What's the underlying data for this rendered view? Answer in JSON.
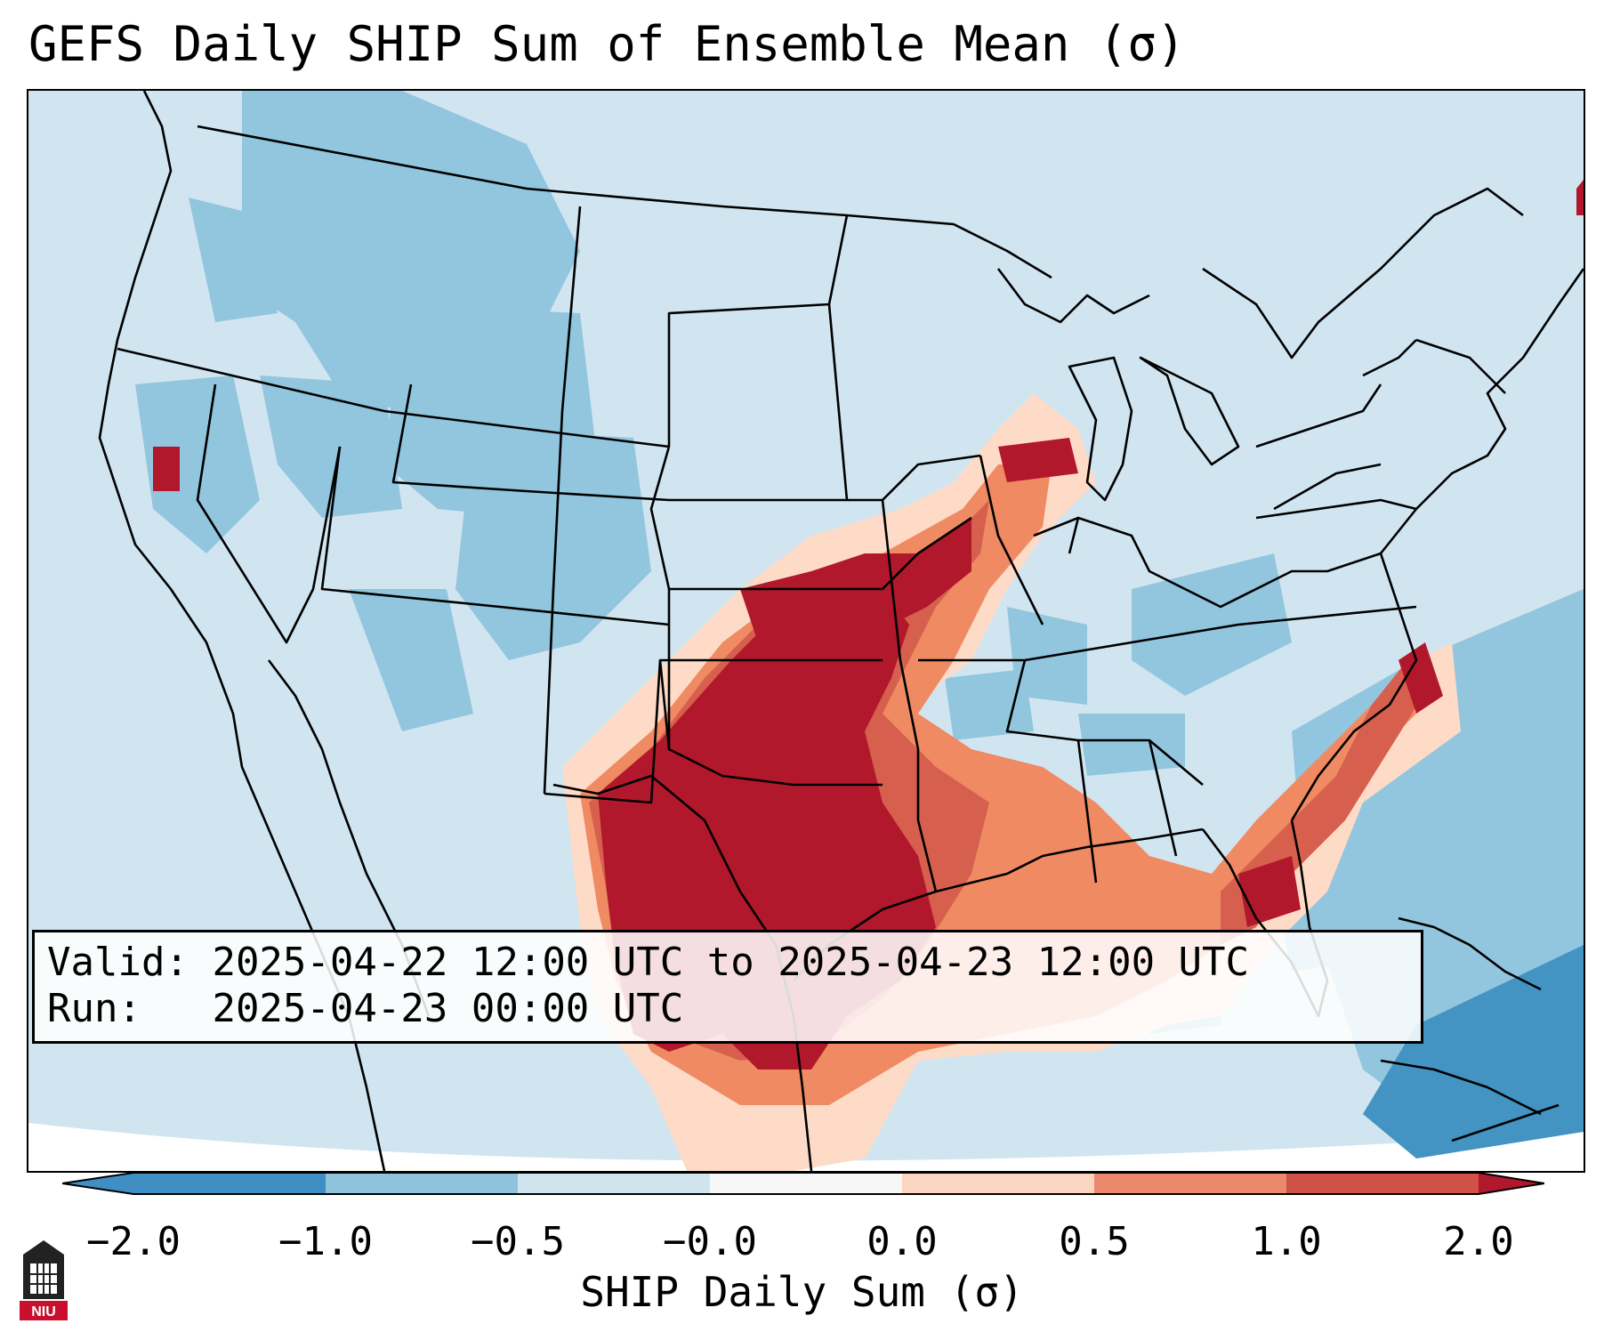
{
  "title": "GEFS Daily SHIP Sum of Ensemble Mean (σ)",
  "info": {
    "valid_label": "Valid:",
    "valid_value": "2025-04-22 12:00 UTC to 2025-04-23 12:00 UTC",
    "run_label": "Run:",
    "run_value": "2025-04-23 00:00 UTC"
  },
  "colorbar": {
    "label": "SHIP Daily Sum (σ)",
    "ticks": [
      "−2.0",
      "−1.0",
      "−0.5",
      "−0.0",
      "0.0",
      "0.5",
      "1.0",
      "2.0"
    ],
    "colors": [
      "#3f8fc4",
      "#8fc2dd",
      "#d0e4ef",
      "#f7f7f7",
      "#fbd5c1",
      "#ea896c",
      "#cf5148",
      "#b2182b"
    ]
  },
  "map_legend_colors": {
    "ocean": "#d1e5f0",
    "land_light_blue": "#d1e5f0",
    "medium_blue": "#92c5de",
    "deep_blue": "#4393c3",
    "light_red": "#fddbc7",
    "medium_red": "#ef8a62",
    "red": "#d6604d",
    "dark_red": "#b2182b"
  },
  "logo": {
    "text": "NIU"
  }
}
